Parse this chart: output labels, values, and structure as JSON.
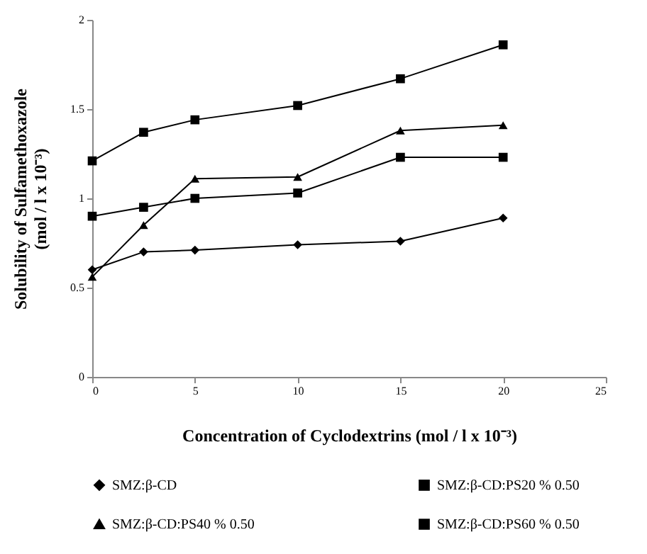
{
  "chart_data": {
    "type": "line",
    "xlabel": "Concentration of Cyclodextrins (mol / l x 10⁻³)",
    "ylabel": "Solubility of Sulfamethoxazole\n(mol / l x 10⁻³)",
    "x": [
      0,
      2.5,
      5,
      10,
      15,
      20
    ],
    "xlim": [
      0,
      25
    ],
    "xticks": [
      0,
      5,
      10,
      15,
      20,
      25
    ],
    "ylim": [
      0,
      2
    ],
    "yticks": [
      0,
      0.5,
      1,
      1.5,
      2
    ],
    "grid": false,
    "legend": "bottom",
    "line_style": "solid",
    "series": [
      {
        "name": "SMZ:β-CD",
        "color": "#000000",
        "marker": "diamond",
        "values": [
          0.6,
          0.7,
          0.71,
          0.74,
          0.76,
          0.89
        ]
      },
      {
        "name": "SMZ:β-CD:PS20  % 0.50",
        "color": "#000000",
        "marker": "square",
        "values": [
          0.9,
          0.95,
          1.0,
          1.03,
          1.23,
          1.23
        ]
      },
      {
        "name": "SMZ:β-CD:PS40  % 0.50",
        "color": "#000000",
        "marker": "triangle",
        "values": [
          0.56,
          0.85,
          1.11,
          1.12,
          1.38,
          1.41
        ]
      },
      {
        "name": "SMZ:β-CD:PS60  % 0.50",
        "color": "#000000",
        "marker": "square",
        "values": [
          1.21,
          1.37,
          1.44,
          1.52,
          1.67,
          1.86
        ]
      }
    ]
  }
}
